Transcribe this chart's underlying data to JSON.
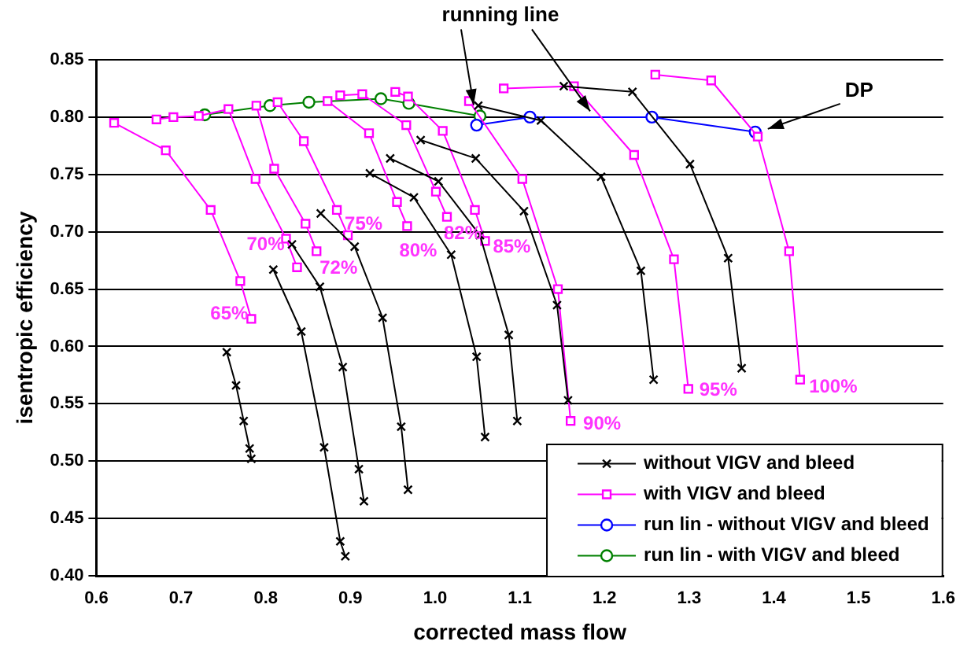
{
  "chart_data": {
    "type": "line",
    "xlabel": "corrected mass flow",
    "ylabel": "isentropic efficiency",
    "xlim": [
      0.6,
      1.6
    ],
    "xticks": [
      {
        "value": 0.6,
        "label": "0.6"
      },
      {
        "value": 0.7,
        "label": "0.7"
      },
      {
        "value": 0.8,
        "label": "0.8"
      },
      {
        "value": 0.9,
        "label": "0.9"
      },
      {
        "value": 1.0,
        "label": "1.0"
      },
      {
        "value": 1.1,
        "label": "1.1"
      },
      {
        "value": 1.2,
        "label": "1.2"
      },
      {
        "value": 1.3,
        "label": "1.3"
      },
      {
        "value": 1.4,
        "label": "1.4"
      },
      {
        "value": 1.5,
        "label": "1.5"
      },
      {
        "value": 1.6,
        "label": "1.6"
      }
    ],
    "ylim": [
      0.4,
      0.85
    ],
    "yticks": [
      {
        "value": 0.4,
        "label": "0.40"
      },
      {
        "value": 0.45,
        "label": "0.45"
      },
      {
        "value": 0.5,
        "label": "0.50"
      },
      {
        "value": 0.55,
        "label": "0.55"
      },
      {
        "value": 0.6,
        "label": "0.60"
      },
      {
        "value": 0.65,
        "label": "0.65"
      },
      {
        "value": 0.7,
        "label": "0.70"
      },
      {
        "value": 0.75,
        "label": "0.75"
      },
      {
        "value": 0.8,
        "label": "0.80"
      },
      {
        "value": 0.85,
        "label": "0.85"
      }
    ],
    "grid": "y",
    "legend": "bottom right",
    "line_style": "solid",
    "series": [
      {
        "name": "without VIGV and bleed",
        "color": "#000000",
        "marker": "cross",
        "x": [
          0.754,
          0.765,
          0.774,
          0.781,
          0.783,
          null,
          0.809,
          0.842,
          0.869,
          0.888,
          0.894,
          null,
          0.831,
          0.864,
          0.891,
          0.91,
          0.916,
          null,
          0.865,
          0.905,
          0.938,
          0.96,
          0.968,
          null,
          0.923,
          0.975,
          1.019,
          1.049,
          1.059,
          null,
          0.947,
          1.004,
          1.053,
          1.087,
          1.097,
          null,
          0.983,
          1.048,
          1.105,
          1.144,
          1.157,
          null,
          1.051,
          1.125,
          1.196,
          1.243,
          1.258,
          null,
          1.152,
          1.233,
          1.301,
          1.346,
          1.362
        ],
        "values": [
          0.595,
          0.566,
          0.535,
          0.511,
          0.502,
          null,
          0.667,
          0.613,
          0.512,
          0.43,
          0.417,
          null,
          0.689,
          0.652,
          0.582,
          0.493,
          0.465,
          null,
          0.716,
          0.687,
          0.625,
          0.53,
          0.475,
          null,
          0.751,
          0.73,
          0.68,
          0.591,
          0.521,
          null,
          0.764,
          0.744,
          0.697,
          0.61,
          0.535,
          null,
          0.78,
          0.764,
          0.718,
          0.636,
          0.553,
          null,
          0.81,
          0.797,
          0.748,
          0.666,
          0.571,
          null,
          0.827,
          0.822,
          0.759,
          0.677,
          0.581
        ]
      },
      {
        "name": "with VIGV and bleed",
        "color": "#ff00ff",
        "marker": "square",
        "x": [
          0.621,
          0.682,
          0.735,
          0.77,
          0.783,
          null,
          0.671,
          0.691,
          0.721,
          0.756,
          0.788,
          0.824,
          0.837,
          null,
          0.789,
          0.81,
          0.847,
          0.86,
          null,
          0.814,
          0.845,
          0.884,
          0.897,
          null,
          0.873,
          0.922,
          0.955,
          0.967,
          null,
          0.888,
          0.914,
          0.966,
          1.001,
          1.014,
          null,
          0.953,
          0.968,
          1.009,
          1.047,
          1.059,
          null,
          1.04,
          1.103,
          1.145,
          1.16,
          null,
          1.081,
          1.164,
          1.235,
          1.282,
          1.299,
          null,
          1.26,
          1.326,
          1.381,
          1.418,
          1.431
        ],
        "values": [
          0.795,
          0.771,
          0.719,
          0.657,
          0.624,
          null,
          0.798,
          0.8,
          0.801,
          0.807,
          0.746,
          0.694,
          0.669,
          null,
          0.81,
          0.755,
          0.707,
          0.683,
          null,
          0.813,
          0.779,
          0.719,
          0.697,
          null,
          0.814,
          0.786,
          0.726,
          0.705,
          null,
          0.819,
          0.82,
          0.793,
          0.735,
          0.713,
          null,
          0.822,
          0.818,
          0.788,
          0.719,
          0.692,
          null,
          0.814,
          0.746,
          0.65,
          0.535,
          null,
          0.825,
          0.827,
          0.767,
          0.676,
          0.563,
          null,
          0.837,
          0.832,
          0.783,
          0.683,
          0.571
        ]
      },
      {
        "name": "run lin - without VIGV and bleed",
        "color": "#0000ff",
        "marker": "circle",
        "x": [
          1.049,
          1.112,
          1.256,
          1.378
        ],
        "values": [
          0.793,
          0.8,
          0.8,
          0.787
        ]
      },
      {
        "name": "run lin - with VIGV and bleed",
        "color": "#008000",
        "marker": "circle",
        "x": [
          0.728,
          0.805,
          0.851,
          0.936,
          0.969,
          1.053
        ],
        "values": [
          0.802,
          0.81,
          0.813,
          0.816,
          0.812,
          0.801
        ]
      }
    ],
    "annotations": [
      {
        "text": "65%",
        "x": 0.783,
        "y": 0.624
      },
      {
        "text": "70%",
        "x": 0.824,
        "y": 0.694
      },
      {
        "text": "72%",
        "x": 0.86,
        "y": 0.683
      },
      {
        "text": "75%",
        "x": 0.897,
        "y": 0.697
      },
      {
        "text": "80%",
        "x": 0.967,
        "y": 0.705
      },
      {
        "text": "82%",
        "x": 1.014,
        "y": 0.713
      },
      {
        "text": "85%",
        "x": 1.059,
        "y": 0.692
      },
      {
        "text": "90%",
        "x": 1.16,
        "y": 0.535
      },
      {
        "text": "95%",
        "x": 1.299,
        "y": 0.563
      },
      {
        "text": "100%",
        "x": 1.431,
        "y": 0.571
      },
      {
        "text": "running line",
        "x": 1.053,
        "y": 0.801
      },
      {
        "text": "DP",
        "x": 1.378,
        "y": 0.787
      }
    ]
  }
}
